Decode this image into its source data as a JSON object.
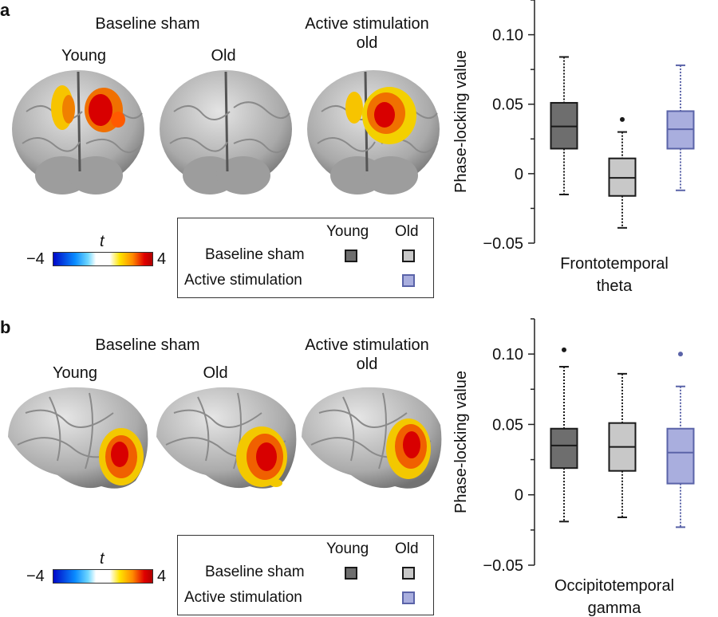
{
  "colors": {
    "young": "#6e6e6e",
    "old": "#c8c8c8",
    "active": "#a9aede",
    "active_stroke": "#5a63a8",
    "dark_stroke": "#1a1a1a"
  },
  "colorbar": {
    "min_label": "−4",
    "max_label": "4",
    "var_label": "t"
  },
  "legend": {
    "col_young": "Young",
    "col_old": "Old",
    "row_baseline": "Baseline sham",
    "row_active": "Active stimulation"
  },
  "panels": [
    {
      "label": "a",
      "baseline_title": "Baseline sham",
      "active_title": "Active stimulation\nold",
      "brain_labels": [
        "Young",
        "Old",
        ""
      ],
      "brain_icons": [
        "brain-frontal-young-icon",
        "brain-frontal-old-icon",
        "brain-frontal-active-icon"
      ]
    },
    {
      "label": "b",
      "baseline_title": "Baseline sham",
      "active_title": "Active stimulation\nold",
      "brain_labels": [
        "Young",
        "Old",
        ""
      ],
      "brain_icons": [
        "brain-lateral-young-icon",
        "brain-lateral-old-icon",
        "brain-lateral-active-icon"
      ]
    }
  ],
  "chart_data": [
    {
      "type": "box",
      "ylabel": "Phase-locking value",
      "xlabel": "Frontotemporal\ntheta",
      "ylim": [
        -0.05,
        0.125
      ],
      "ytick_values": [
        -0.05,
        0,
        0.05,
        0.1
      ],
      "ytick_labels": [
        "−0.05",
        "0",
        "0.05",
        "0.10"
      ],
      "series": [
        {
          "name": "Young baseline sham",
          "whisker_low": -0.015,
          "q1": 0.018,
          "median": 0.034,
          "q3": 0.051,
          "whisker_high": 0.084,
          "outliers": []
        },
        {
          "name": "Old baseline sham",
          "whisker_low": -0.039,
          "q1": -0.016,
          "median": -0.003,
          "q3": 0.011,
          "whisker_high": 0.03,
          "outliers": [
            0.039
          ]
        },
        {
          "name": "Old active stimulation",
          "whisker_low": -0.012,
          "q1": 0.018,
          "median": 0.032,
          "q3": 0.045,
          "whisker_high": 0.078,
          "outliers": []
        }
      ]
    },
    {
      "type": "box",
      "ylabel": "Phase-locking value",
      "xlabel": "Occipitotemporal\ngamma",
      "ylim": [
        -0.05,
        0.125
      ],
      "ytick_values": [
        -0.05,
        0,
        0.05,
        0.1
      ],
      "ytick_labels": [
        "−0.05",
        "0",
        "0.05",
        "0.10"
      ],
      "series": [
        {
          "name": "Young baseline sham",
          "whisker_low": -0.019,
          "q1": 0.019,
          "median": 0.035,
          "q3": 0.047,
          "whisker_high": 0.091,
          "outliers": [
            0.103
          ]
        },
        {
          "name": "Old baseline sham",
          "whisker_low": -0.016,
          "q1": 0.017,
          "median": 0.034,
          "q3": 0.051,
          "whisker_high": 0.086,
          "outliers": []
        },
        {
          "name": "Old active stimulation",
          "whisker_low": -0.023,
          "q1": 0.008,
          "median": 0.03,
          "q3": 0.047,
          "whisker_high": 0.077,
          "outliers": [
            0.1
          ]
        }
      ]
    }
  ]
}
